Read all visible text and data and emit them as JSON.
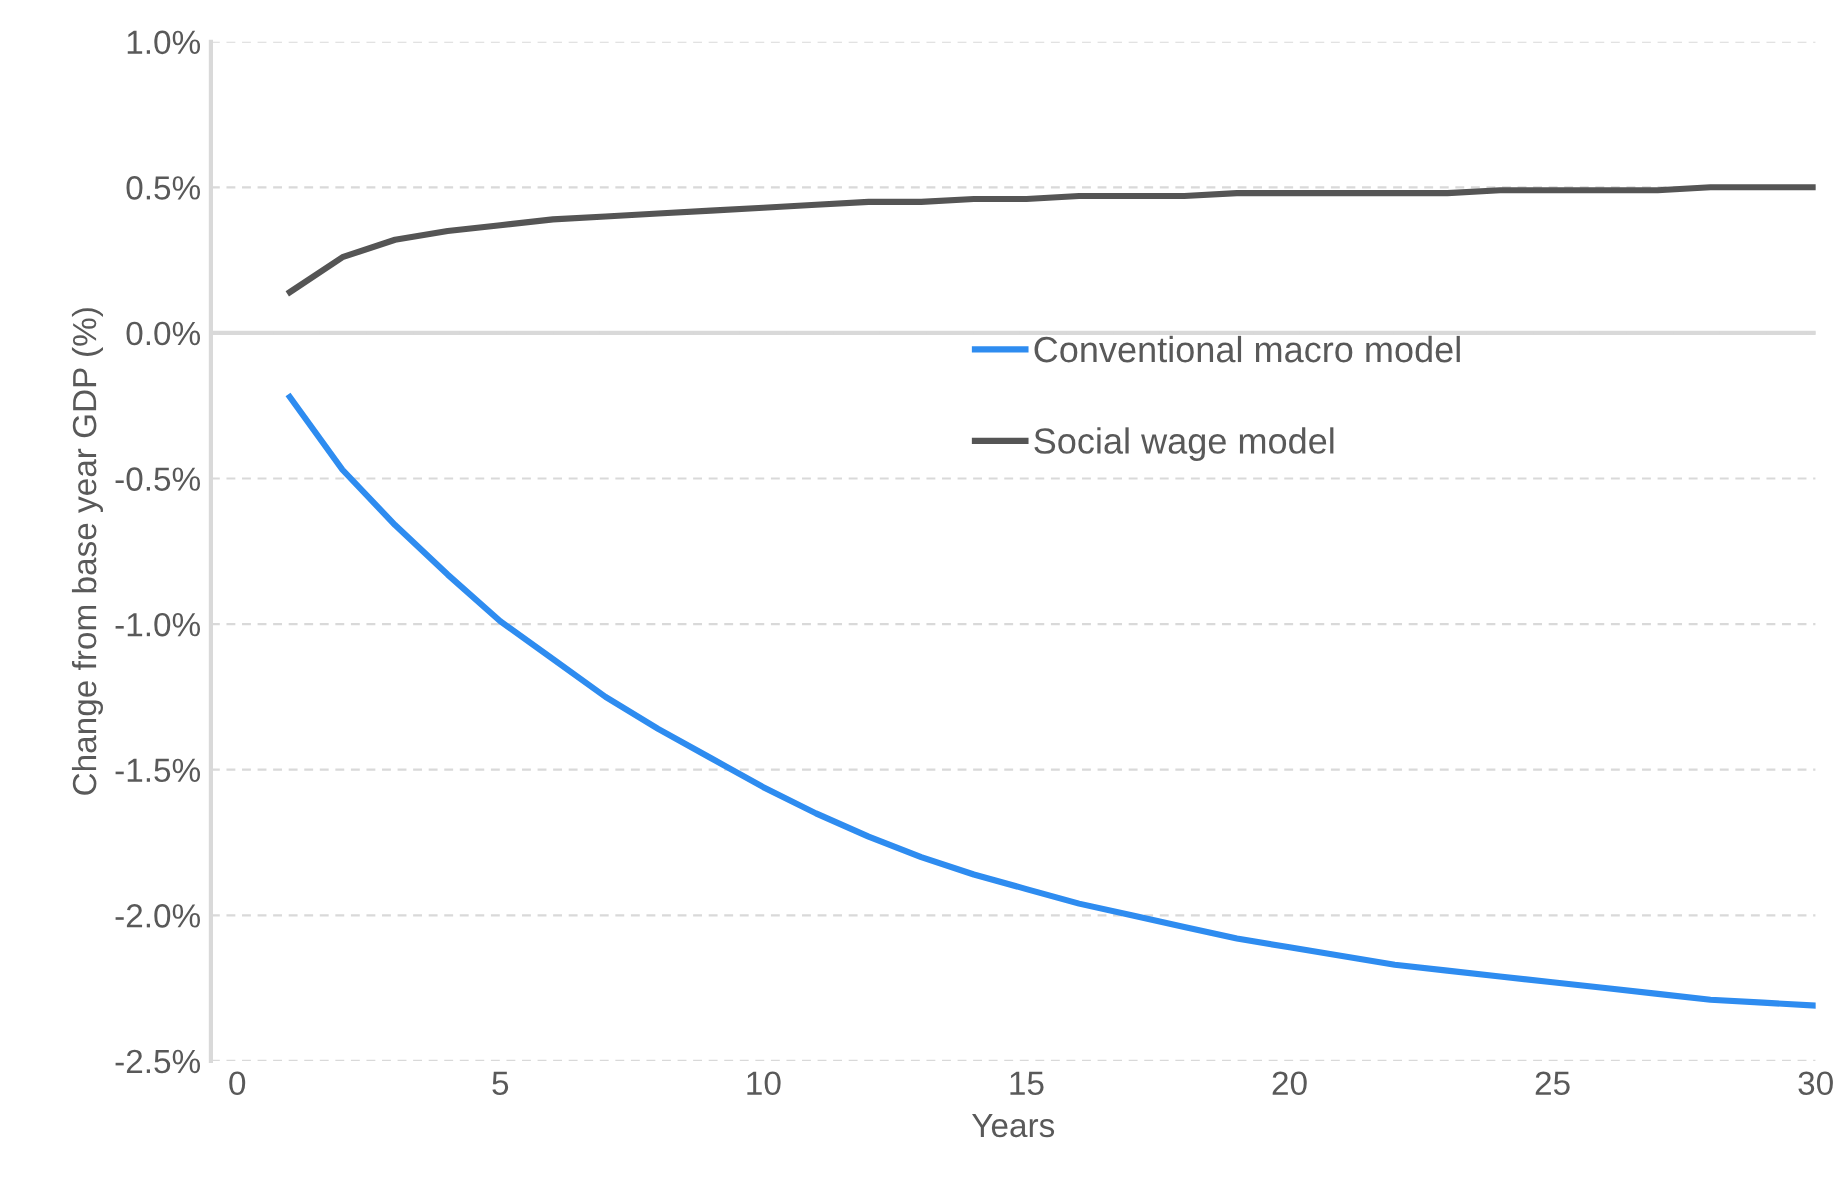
{
  "chart_data": {
    "type": "line",
    "xlabel": "Years",
    "ylabel": "Change from base year GDP (%)",
    "x": [
      1,
      2,
      3,
      4,
      5,
      6,
      7,
      8,
      9,
      10,
      11,
      12,
      13,
      14,
      15,
      16,
      17,
      18,
      19,
      20,
      21,
      22,
      23,
      24,
      25,
      26,
      27,
      28,
      29,
      30
    ],
    "series": [
      {
        "name": "Conventional macro model",
        "color": "#2e8cf0",
        "values": [
          -0.22,
          -0.47,
          -0.66,
          -0.83,
          -0.99,
          -1.12,
          -1.25,
          -1.36,
          -1.46,
          -1.56,
          -1.65,
          -1.73,
          -1.8,
          -1.86,
          -1.91,
          -1.96,
          -2.0,
          -2.04,
          -2.08,
          -2.11,
          -2.14,
          -2.17,
          -2.19,
          -2.21,
          -2.23,
          -2.25,
          -2.27,
          -2.29,
          -2.3,
          -2.31
        ]
      },
      {
        "name": "Social wage model",
        "color": "#555555",
        "values": [
          0.14,
          0.26,
          0.32,
          0.35,
          0.37,
          0.39,
          0.4,
          0.41,
          0.42,
          0.43,
          0.44,
          0.45,
          0.45,
          0.46,
          0.46,
          0.47,
          0.47,
          0.47,
          0.48,
          0.48,
          0.48,
          0.48,
          0.48,
          0.49,
          0.49,
          0.49,
          0.49,
          0.5,
          0.5,
          0.5
        ]
      }
    ],
    "xlim": [
      -0.5,
      30
    ],
    "xticks": [
      0,
      5,
      10,
      15,
      20,
      25,
      30
    ],
    "ylim": [
      -2.5,
      1.0
    ],
    "yticks": [
      {
        "value": -2.5,
        "label": "-2.5%"
      },
      {
        "value": -2.0,
        "label": "-2.0%"
      },
      {
        "value": -1.5,
        "label": "-1.5%"
      },
      {
        "value": -1.0,
        "label": "-1.0%"
      },
      {
        "value": -0.5,
        "label": "-0.5%"
      },
      {
        "value": 0.0,
        "label": "0.0%"
      },
      {
        "value": 0.5,
        "label": "0.5%"
      },
      {
        "value": 1.0,
        "label": "1.0%"
      }
    ],
    "ref_lines": [
      {
        "axis": "y",
        "value": 0,
        "color": "#d9d9d9"
      }
    ],
    "grid": "y",
    "legend": "right",
    "marker": "none",
    "line_style": "solid"
  }
}
